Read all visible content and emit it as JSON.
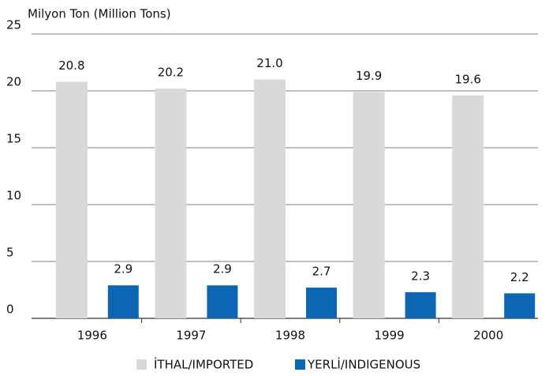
{
  "chart_data": {
    "type": "bar",
    "y_label": "Milyon Ton (Million Tons)",
    "categories": [
      "1996",
      "1997",
      "1998",
      "1999",
      "2000"
    ],
    "series": [
      {
        "name": "İTHAL/IMPORTED",
        "color": "#d9d9d9",
        "values": [
          20.8,
          20.2,
          21.0,
          19.9,
          19.6
        ],
        "value_labels": [
          "20.8",
          "20.2",
          "21.0",
          "19.9",
          "19.6"
        ]
      },
      {
        "name": "YERLİ/INDIGENOUS",
        "color": "#0d66b3",
        "values": [
          2.9,
          2.9,
          2.7,
          2.3,
          2.2
        ]
      }
    ],
    "ylim": [
      0,
      25
    ],
    "yticks": [
      0,
      5,
      10,
      15,
      20,
      25
    ],
    "grid": true,
    "legend": "bottom"
  }
}
